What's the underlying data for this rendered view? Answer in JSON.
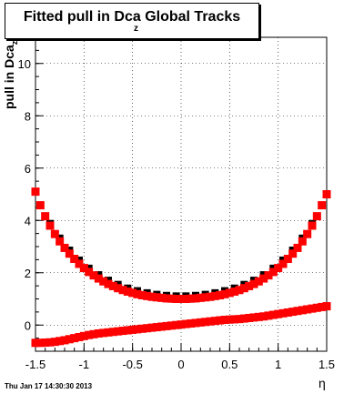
{
  "title": "Fitted pull in Dca Global Tracks",
  "title_subscript": "z",
  "footer": "Thu Jan 17 14:30:30 2013",
  "chart_data": {
    "type": "scatter",
    "title": "Fitted pull in Dca Global Tracks",
    "xlabel": "η",
    "ylabel": "pull in Dca",
    "ylabel_subscript": "z",
    "xlim": [
      -1.5,
      1.5
    ],
    "ylim": [
      -1,
      11
    ],
    "xticks": [
      -1.5,
      -1,
      -0.5,
      0,
      0.5,
      1,
      1.5
    ],
    "xtick_labels": [
      "-1.5",
      "-1",
      "-0.5",
      "0",
      "0.5",
      "1",
      "1.5"
    ],
    "yticks": [
      0,
      2,
      4,
      6,
      8,
      10
    ],
    "ytick_labels": [
      "0",
      "2",
      "4",
      "6",
      "8",
      "10"
    ],
    "grid": true,
    "colors": {
      "red": "#ff0000",
      "black": "#000000"
    },
    "series": [
      {
        "color": "#000000",
        "marker": "square",
        "x": [
          -1.45,
          -1.35,
          -1.25,
          -1.15,
          -1.05,
          -0.95,
          -0.85,
          -0.75,
          -0.65,
          -0.55,
          -0.45,
          -0.35,
          -0.25,
          -0.15,
          -0.05,
          0.05,
          0.15,
          0.25,
          0.35,
          0.45,
          0.55,
          0.65,
          0.75,
          0.85,
          0.95,
          1.05,
          1.15,
          1.25,
          1.35,
          1.45
        ],
        "y": [
          4.58,
          3.88,
          3.32,
          2.86,
          2.48,
          2.17,
          1.92,
          1.71,
          1.55,
          1.41,
          1.31,
          1.23,
          1.17,
          1.13,
          1.11,
          1.11,
          1.13,
          1.17,
          1.23,
          1.31,
          1.41,
          1.55,
          1.71,
          1.92,
          2.17,
          2.48,
          2.86,
          3.32,
          3.88,
          4.58
        ]
      },
      {
        "color": "#ff0000",
        "marker": "square",
        "x": [
          -1.5,
          -1.45,
          -1.4,
          -1.35,
          -1.3,
          -1.25,
          -1.2,
          -1.15,
          -1.1,
          -1.05,
          -1.0,
          -0.95,
          -0.9,
          -0.85,
          -0.8,
          -0.75,
          -0.7,
          -0.65,
          -0.6,
          -0.55,
          -0.5,
          -0.45,
          -0.4,
          -0.35,
          -0.3,
          -0.25,
          -0.2,
          -0.15,
          -0.1,
          -0.05,
          0.0,
          0.05,
          0.1,
          0.15,
          0.2,
          0.25,
          0.3,
          0.35,
          0.4,
          0.45,
          0.5,
          0.55,
          0.6,
          0.65,
          0.7,
          0.75,
          0.8,
          0.85,
          0.9,
          0.95,
          1.0,
          1.05,
          1.1,
          1.15,
          1.2,
          1.25,
          1.3,
          1.35,
          1.4,
          1.45,
          1.5
        ],
        "y": [
          5.1,
          4.58,
          4.16,
          3.8,
          3.48,
          3.2,
          2.95,
          2.73,
          2.53,
          2.34,
          2.18,
          2.03,
          1.9,
          1.78,
          1.67,
          1.57,
          1.49,
          1.41,
          1.34,
          1.28,
          1.23,
          1.18,
          1.14,
          1.11,
          1.08,
          1.06,
          1.04,
          1.02,
          1.01,
          1.0,
          1.0,
          1.0,
          1.01,
          1.02,
          1.04,
          1.06,
          1.08,
          1.11,
          1.14,
          1.18,
          1.23,
          1.28,
          1.34,
          1.41,
          1.49,
          1.57,
          1.67,
          1.78,
          1.9,
          2.03,
          2.18,
          2.34,
          2.53,
          2.73,
          2.95,
          3.2,
          3.48,
          3.8,
          4.16,
          4.58,
          5.0
        ]
      },
      {
        "color": "#ff0000",
        "marker": "square",
        "x": [
          -1.5,
          -1.45,
          -1.4,
          -1.35,
          -1.3,
          -1.25,
          -1.2,
          -1.15,
          -1.1,
          -1.05,
          -1.0,
          -0.95,
          -0.9,
          -0.85,
          -0.8,
          -0.75,
          -0.7,
          -0.65,
          -0.6,
          -0.55,
          -0.5,
          -0.45,
          -0.4,
          -0.35,
          -0.3,
          -0.25,
          -0.2,
          -0.15,
          -0.1,
          -0.05,
          0.0,
          0.05,
          0.1,
          0.15,
          0.2,
          0.25,
          0.3,
          0.35,
          0.4,
          0.45,
          0.5,
          0.55,
          0.6,
          0.65,
          0.7,
          0.75,
          0.8,
          0.85,
          0.9,
          0.95,
          1.0,
          1.05,
          1.1,
          1.15,
          1.2,
          1.25,
          1.3,
          1.35,
          1.4,
          1.45,
          1.5
        ],
        "y": [
          -0.68,
          -0.68,
          -0.67,
          -0.66,
          -0.64,
          -0.61,
          -0.58,
          -0.54,
          -0.5,
          -0.46,
          -0.42,
          -0.38,
          -0.35,
          -0.32,
          -0.3,
          -0.28,
          -0.26,
          -0.24,
          -0.22,
          -0.2,
          -0.18,
          -0.16,
          -0.14,
          -0.12,
          -0.1,
          -0.08,
          -0.06,
          -0.04,
          -0.02,
          0.0,
          0.02,
          0.04,
          0.06,
          0.08,
          0.1,
          0.12,
          0.14,
          0.16,
          0.18,
          0.2,
          0.21,
          0.22,
          0.23,
          0.25,
          0.27,
          0.29,
          0.31,
          0.33,
          0.36,
          0.39,
          0.42,
          0.45,
          0.48,
          0.51,
          0.54,
          0.57,
          0.6,
          0.63,
          0.66,
          0.69,
          0.72
        ]
      }
    ]
  }
}
